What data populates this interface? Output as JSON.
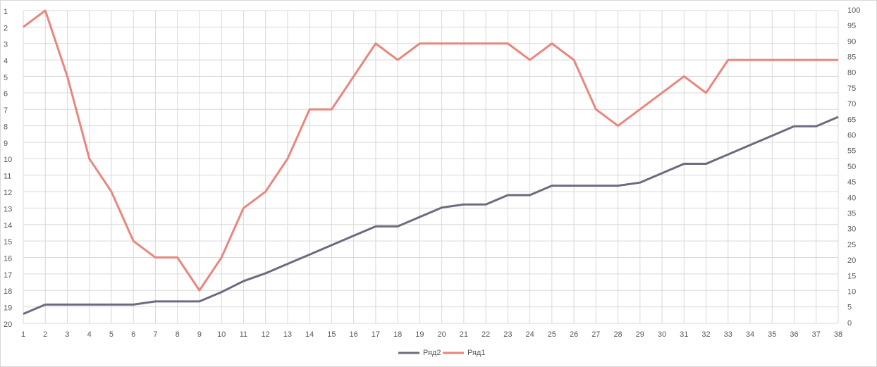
{
  "chart_data": {
    "type": "line",
    "categories": [
      "1",
      "2",
      "3",
      "4",
      "5",
      "6",
      "7",
      "8",
      "9",
      "10",
      "11",
      "12",
      "13",
      "14",
      "15",
      "16",
      "17",
      "18",
      "19",
      "20",
      "21",
      "22",
      "23",
      "24",
      "25",
      "26",
      "27",
      "28",
      "29",
      "30",
      "31",
      "32",
      "33",
      "34",
      "35",
      "36",
      "37",
      "38"
    ],
    "series": [
      {
        "name": "Ряд2",
        "color": "#6e6a80",
        "axis": "y2",
        "values": [
          3,
          6,
          6,
          6,
          6,
          6,
          7,
          7,
          7,
          10,
          13.5,
          16,
          19,
          22,
          25,
          28,
          31,
          31,
          34,
          37,
          38,
          38,
          41,
          41,
          44,
          44,
          44,
          44,
          45,
          48,
          51,
          51,
          54,
          57,
          60,
          63,
          63,
          66
        ]
      },
      {
        "name": "Ряд1",
        "color": "#e8877e",
        "axis": "y",
        "values": [
          2,
          1,
          5,
          10,
          12,
          15,
          16,
          16,
          18,
          16,
          13,
          12,
          10,
          7,
          7,
          5,
          3,
          4,
          3,
          3,
          3,
          3,
          3,
          4,
          3,
          4,
          7,
          8,
          7,
          6,
          5,
          6,
          4,
          4,
          4,
          4,
          4,
          4
        ]
      }
    ],
    "ylim": [
      20,
      1
    ],
    "yticks": [
      1,
      2,
      3,
      4,
      5,
      6,
      7,
      8,
      9,
      10,
      11,
      12,
      13,
      14,
      15,
      16,
      17,
      18,
      19,
      20
    ],
    "y2lim": [
      0,
      100
    ],
    "y2ticks": [
      0,
      5,
      10,
      15,
      20,
      25,
      30,
      35,
      40,
      45,
      50,
      55,
      60,
      65,
      70,
      75,
      80,
      85,
      90,
      95,
      100
    ],
    "grid": true,
    "legend": "bottom"
  }
}
